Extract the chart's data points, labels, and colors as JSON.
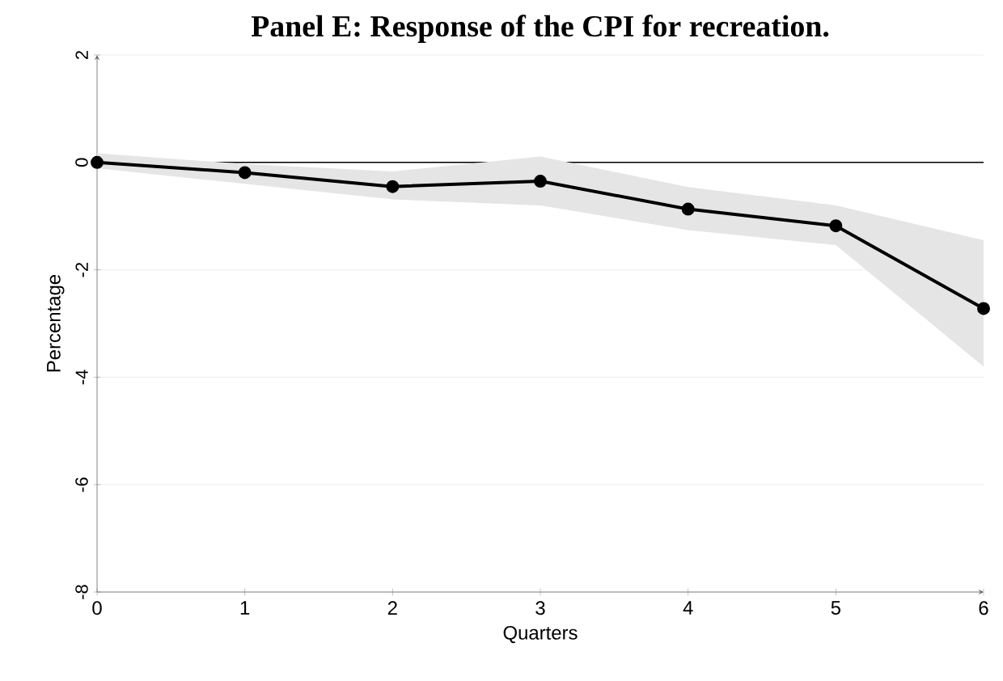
{
  "chart_data": {
    "type": "line",
    "title": "Panel E: Response of the CPI for recreation.",
    "xlabel": "Quarters",
    "ylabel": "Percentage",
    "x": [
      0,
      1,
      2,
      3,
      4,
      5,
      6
    ],
    "series": [
      {
        "color": "#000000",
        "values": [
          0,
          -0.19,
          -0.45,
          -0.35,
          -0.87,
          -1.18,
          -2.72
        ],
        "lower": [
          -0.11,
          -0.4,
          -0.69,
          -0.8,
          -1.26,
          -1.54,
          -3.8
        ],
        "upper": [
          0.17,
          -0.03,
          -0.17,
          0.11,
          -0.46,
          -0.8,
          -1.45
        ]
      }
    ],
    "xlim": [
      0,
      6
    ],
    "xticks": [
      0,
      1,
      2,
      3,
      4,
      5,
      6
    ],
    "ylim": [
      -8,
      2
    ],
    "yticks": [
      -8,
      -6,
      -4,
      -2,
      0,
      2
    ],
    "grid": "y",
    "marker": "circle",
    "line_style": "solid",
    "ref_lines": [
      {
        "axis": "y",
        "value": 0,
        "color": "#000000"
      }
    ]
  }
}
